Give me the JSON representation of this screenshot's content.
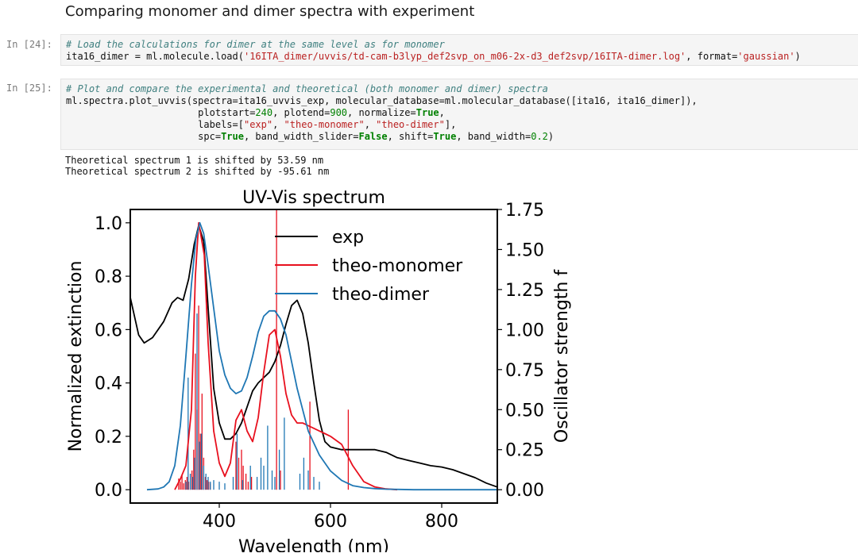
{
  "heading": "Comparing monomer and dimer spectra with experiment",
  "cells": [
    {
      "prompt": "In [24]:",
      "lines": [
        [
          {
            "t": "# Load the calculations for dimer at the same level as for monomer",
            "c": "c"
          }
        ],
        [
          {
            "t": "ita16_dimer = ml.molecule.load(",
            "c": ""
          },
          {
            "t": "'16ITA_dimer/uvvis/td-cam-b3lyp_def2svp_on_m06-2x-d3_def2svp/16ITA-dimer.log'",
            "c": "s"
          },
          {
            "t": ", format=",
            "c": ""
          },
          {
            "t": "'gaussian'",
            "c": "s"
          },
          {
            "t": ")",
            "c": ""
          }
        ]
      ]
    },
    {
      "prompt": "In [25]:",
      "lines": [
        [
          {
            "t": "# Plot and compare the experimental and theoretical (both monomer and dimer) spectra",
            "c": "c"
          }
        ],
        [
          {
            "t": "ml.spectra.plot_uvvis(spectra=ita16_uvvis_exp, molecular_database=ml.molecular_database([ita16, ita16_dimer]),",
            "c": ""
          }
        ],
        [
          {
            "t": "                       plotstart=",
            "c": ""
          },
          {
            "t": "240",
            "c": "n"
          },
          {
            "t": ", plotend=",
            "c": ""
          },
          {
            "t": "900",
            "c": "n"
          },
          {
            "t": ", normalize=",
            "c": ""
          },
          {
            "t": "True",
            "c": "k"
          },
          {
            "t": ",",
            "c": ""
          }
        ],
        [
          {
            "t": "                       labels=[",
            "c": ""
          },
          {
            "t": "\"exp\"",
            "c": "s"
          },
          {
            "t": ", ",
            "c": ""
          },
          {
            "t": "\"theo-monomer\"",
            "c": "s"
          },
          {
            "t": ", ",
            "c": ""
          },
          {
            "t": "\"theo-dimer\"",
            "c": "s"
          },
          {
            "t": "],",
            "c": ""
          }
        ],
        [
          {
            "t": "                       spc=",
            "c": ""
          },
          {
            "t": "True",
            "c": "k"
          },
          {
            "t": ", band_width_slider=",
            "c": ""
          },
          {
            "t": "False",
            "c": "k"
          },
          {
            "t": ", shift=",
            "c": ""
          },
          {
            "t": "True",
            "c": "k"
          },
          {
            "t": ", band_width=",
            "c": ""
          },
          {
            "t": "0.2",
            "c": "n"
          },
          {
            "t": ")",
            "c": ""
          }
        ]
      ]
    }
  ],
  "output_lines": [
    "Theoretical spectrum 1 is shifted by 53.59 nm",
    "Theoretical spectrum 2 is shifted by -95.61 nm"
  ],
  "chart_data": {
    "type": "line",
    "title": "UV-Vis spectrum",
    "xlabel": "Wavelength (nm)",
    "ylabel": "Normalized extinction",
    "y2label": "Oscillator strength f",
    "xlim": [
      240,
      900
    ],
    "ylim": [
      -0.05,
      1.05
    ],
    "y2lim": [
      -0.0833,
      1.75
    ],
    "xticks": [
      "400",
      "600",
      "800"
    ],
    "yticks": [
      "0.0",
      "0.2",
      "0.4",
      "0.6",
      "0.8",
      "1.0"
    ],
    "y2ticks": [
      "0.00",
      "0.25",
      "0.50",
      "0.75",
      "1.00",
      "1.25",
      "1.50",
      "1.75"
    ],
    "legend_position": "top-center",
    "colors": {
      "exp": "#000000",
      "theo-monomer": "#e8101e",
      "theo-dimer": "#1f77b4"
    },
    "series": [
      {
        "name": "exp",
        "x": [
          240,
          255,
          265,
          280,
          300,
          315,
          325,
          335,
          345,
          355,
          363,
          372,
          380,
          390,
          400,
          410,
          420,
          430,
          440,
          450,
          460,
          470,
          480,
          490,
          500,
          510,
          520,
          530,
          540,
          550,
          560,
          570,
          580,
          590,
          600,
          620,
          640,
          660,
          680,
          700,
          720,
          740,
          760,
          780,
          800,
          820,
          840,
          860,
          880,
          900
        ],
        "y": [
          0.72,
          0.58,
          0.55,
          0.57,
          0.63,
          0.7,
          0.72,
          0.71,
          0.79,
          0.92,
          0.99,
          0.93,
          0.68,
          0.38,
          0.25,
          0.19,
          0.19,
          0.21,
          0.25,
          0.31,
          0.37,
          0.4,
          0.42,
          0.44,
          0.48,
          0.54,
          0.62,
          0.69,
          0.71,
          0.66,
          0.55,
          0.4,
          0.26,
          0.18,
          0.16,
          0.15,
          0.15,
          0.15,
          0.15,
          0.14,
          0.12,
          0.11,
          0.1,
          0.09,
          0.085,
          0.075,
          0.06,
          0.045,
          0.025,
          0.01
        ]
      },
      {
        "name": "theo-monomer",
        "x": [
          320,
          330,
          340,
          350,
          357,
          363,
          368,
          373,
          380,
          390,
          400,
          410,
          420,
          430,
          440,
          450,
          460,
          470,
          480,
          490,
          500,
          510,
          520,
          530,
          540,
          550,
          560,
          570,
          580,
          590,
          600,
          620,
          640,
          660,
          680,
          700,
          720
        ],
        "y": [
          0.0,
          0.04,
          0.09,
          0.3,
          0.8,
          1.0,
          0.94,
          0.88,
          0.55,
          0.22,
          0.1,
          0.05,
          0.1,
          0.26,
          0.3,
          0.22,
          0.18,
          0.27,
          0.44,
          0.58,
          0.6,
          0.5,
          0.36,
          0.28,
          0.25,
          0.25,
          0.24,
          0.23,
          0.22,
          0.21,
          0.2,
          0.17,
          0.09,
          0.03,
          0.01,
          0.003,
          0.0
        ]
      },
      {
        "name": "theo-dimer",
        "x": [
          270,
          290,
          300,
          310,
          320,
          330,
          340,
          350,
          358,
          365,
          372,
          380,
          390,
          400,
          410,
          420,
          430,
          440,
          450,
          460,
          470,
          480,
          490,
          500,
          510,
          520,
          530,
          540,
          550,
          560,
          580,
          600,
          620,
          640,
          660,
          680,
          700,
          750,
          800,
          850,
          900
        ],
        "y": [
          0.0,
          0.003,
          0.01,
          0.03,
          0.09,
          0.24,
          0.5,
          0.77,
          0.94,
          1.0,
          0.96,
          0.84,
          0.68,
          0.52,
          0.43,
          0.38,
          0.36,
          0.37,
          0.42,
          0.5,
          0.59,
          0.65,
          0.67,
          0.67,
          0.64,
          0.58,
          0.48,
          0.38,
          0.3,
          0.22,
          0.13,
          0.07,
          0.035,
          0.015,
          0.008,
          0.004,
          0.002,
          0.0,
          0.0,
          0.0,
          0.0
        ]
      }
    ],
    "sticks": [
      {
        "name": "theo-monomer",
        "wavelengths": [
          327,
          330,
          333,
          336,
          339,
          342,
          345,
          348,
          351,
          354,
          357,
          360,
          363,
          366,
          369,
          372,
          375,
          378,
          381,
          384,
          430,
          435,
          440,
          443,
          448,
          452,
          458,
          503,
          510,
          563,
          632
        ],
        "f": [
          0.07,
          0.05,
          0.09,
          0.04,
          0.06,
          0.08,
          0.05,
          0.1,
          0.12,
          0.25,
          0.85,
          0.5,
          1.15,
          0.35,
          0.6,
          0.2,
          0.08,
          0.06,
          0.05,
          0.04,
          0.3,
          0.2,
          0.25,
          0.15,
          0.1,
          0.05,
          0.08,
          1.75,
          0.12,
          0.55,
          0.5
        ]
      },
      {
        "name": "theo-dimer",
        "wavelengths": [
          340,
          344,
          348,
          352,
          356,
          360,
          364,
          368,
          372,
          376,
          380,
          384,
          390,
          400,
          410,
          425,
          432,
          442,
          456,
          468,
          475,
          480,
          487,
          495,
          500,
          508,
          517,
          545,
          552,
          560,
          570,
          580
        ],
        "f": [
          0.05,
          0.7,
          0.1,
          0.08,
          0.2,
          1.1,
          0.3,
          0.35,
          0.15,
          0.1,
          0.08,
          0.05,
          0.06,
          0.05,
          0.04,
          0.08,
          0.35,
          0.06,
          0.15,
          0.08,
          0.2,
          0.15,
          0.4,
          0.12,
          0.08,
          0.25,
          0.45,
          0.1,
          0.2,
          0.12,
          0.08,
          0.05
        ]
      }
    ]
  }
}
